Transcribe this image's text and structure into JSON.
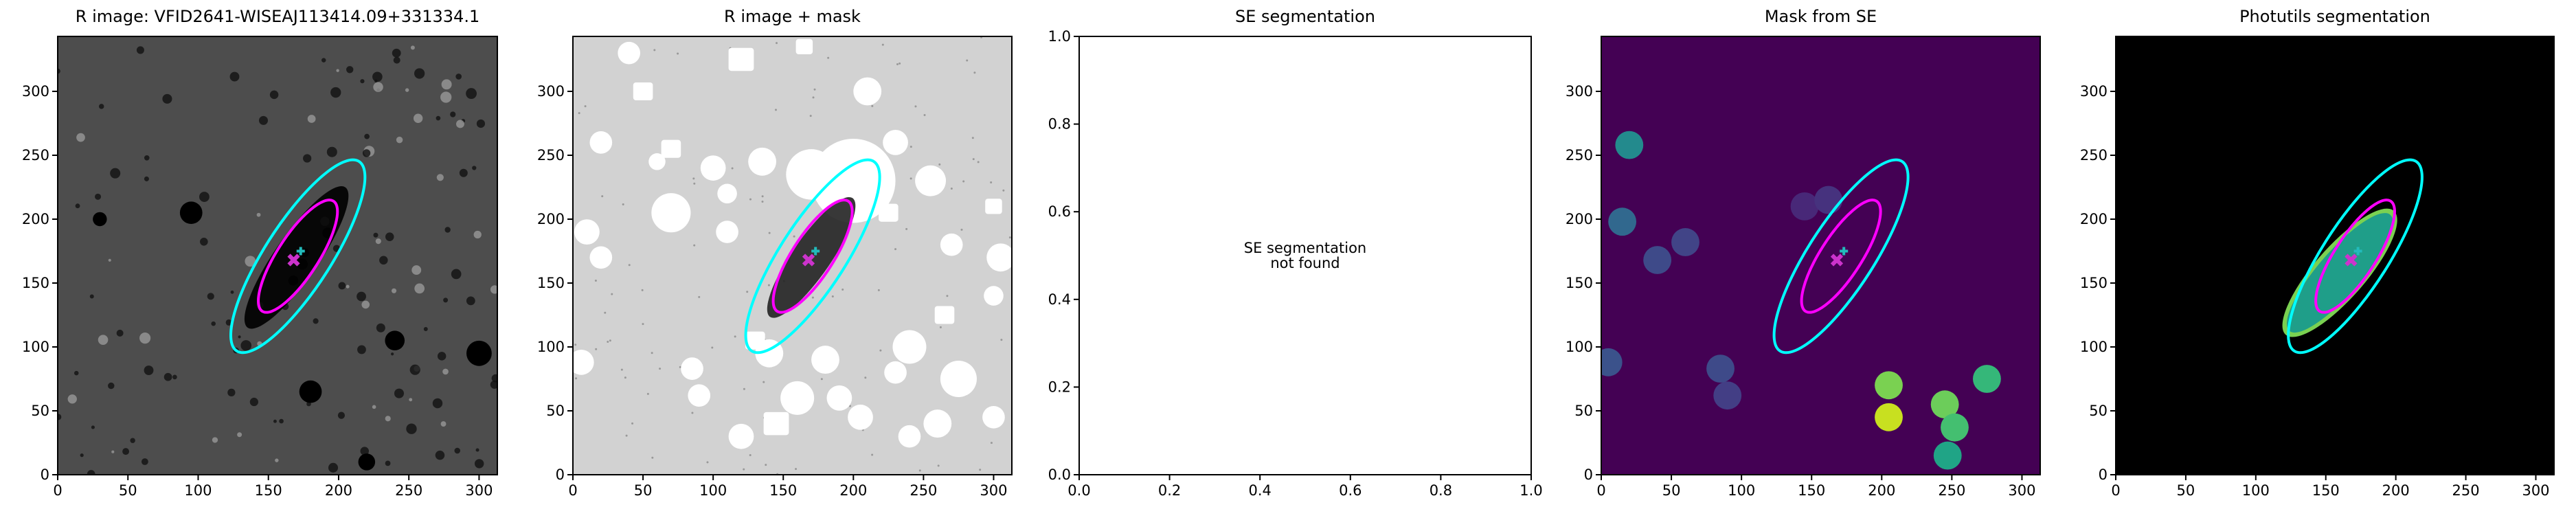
{
  "chart_data": [
    {
      "type": "image",
      "title": "R image: VFID2641-WISEAJ113414.09+331334.1",
      "background": "#4d4d4d",
      "xlim": [
        0,
        313
      ],
      "ylim": [
        0,
        343
      ],
      "xticks": [
        0,
        50,
        100,
        150,
        200,
        250,
        300
      ],
      "yticks": [
        0,
        50,
        100,
        150,
        200,
        250,
        300
      ]
    },
    {
      "type": "image",
      "title": "R image + mask",
      "background": "#d2d2d2",
      "xlim": [
        0,
        313
      ],
      "ylim": [
        0,
        343
      ],
      "xticks": [
        0,
        50,
        100,
        150,
        200,
        250,
        300
      ],
      "yticks": [
        0,
        50,
        100,
        150,
        200,
        250,
        300
      ]
    },
    {
      "type": "empty",
      "title": "SE segmentation",
      "annotation": [
        "SE segmentation",
        "not found"
      ],
      "xlim": [
        0,
        1
      ],
      "ylim": [
        0,
        1
      ],
      "xticks": [
        {
          "value": 0,
          "label": "0.0"
        },
        {
          "value": 0.2,
          "label": "0.2"
        },
        {
          "value": 0.4,
          "label": "0.4"
        },
        {
          "value": 0.6,
          "label": "0.6"
        },
        {
          "value": 0.8,
          "label": "0.8"
        },
        {
          "value": 1,
          "label": "1.0"
        }
      ],
      "yticks": [
        {
          "value": 0,
          "label": "0.0"
        },
        {
          "value": 0.2,
          "label": "0.2"
        },
        {
          "value": 0.4,
          "label": "0.4"
        },
        {
          "value": 0.6,
          "label": "0.6"
        },
        {
          "value": 0.8,
          "label": "0.8"
        },
        {
          "value": 1,
          "label": "1.0"
        }
      ]
    },
    {
      "type": "image",
      "title": "Mask from SE",
      "background": "#440154",
      "xlim": [
        0,
        313
      ],
      "ylim": [
        0,
        343
      ],
      "xticks": [
        0,
        50,
        100,
        150,
        200,
        250,
        300
      ],
      "yticks": [
        0,
        50,
        100,
        150,
        200,
        250,
        300
      ]
    },
    {
      "type": "image",
      "title": "Photutils segmentation",
      "background": "#000000",
      "xlim": [
        0,
        313
      ],
      "ylim": [
        0,
        343
      ],
      "xticks": [
        0,
        50,
        100,
        150,
        200,
        250,
        300
      ],
      "yticks": [
        0,
        50,
        100,
        150,
        200,
        250,
        300
      ]
    }
  ]
}
